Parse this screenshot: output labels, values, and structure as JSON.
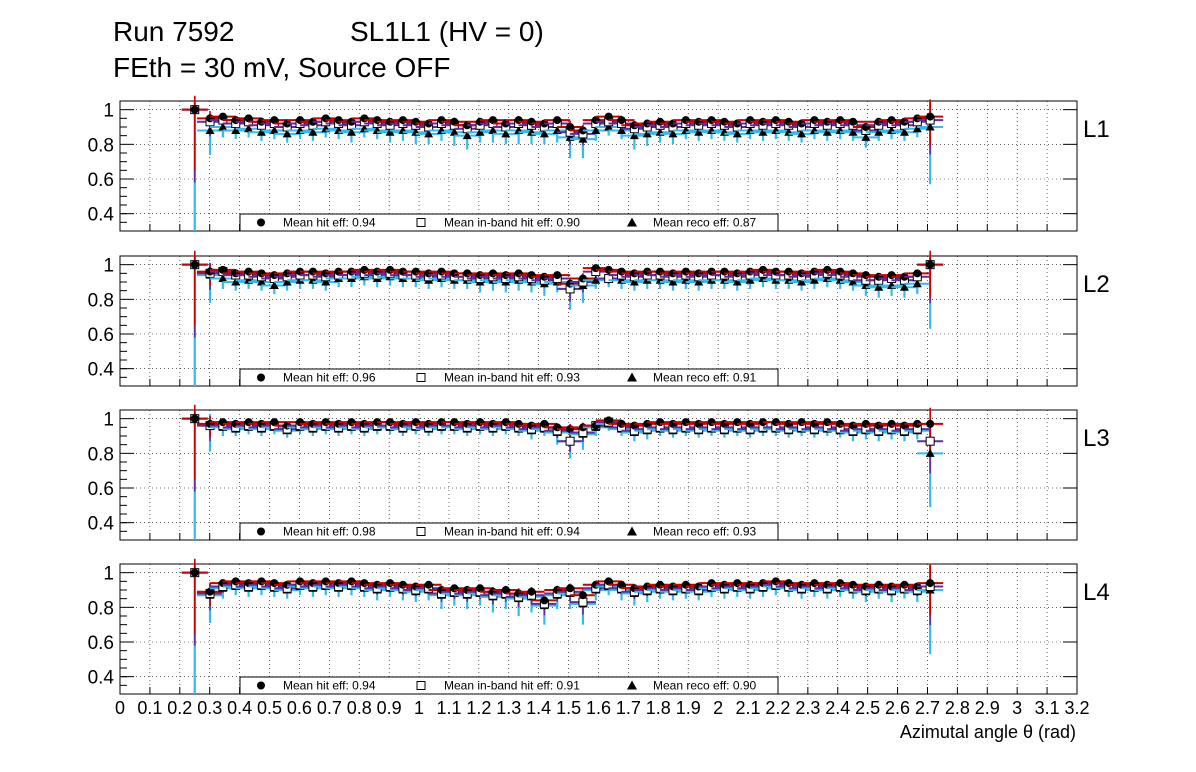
{
  "header": {
    "run": "Run 7592",
    "sl": "SL1L1 (HV = 0)",
    "settings": "FEth = 30 mV, Source OFF"
  },
  "chart_data": {
    "type": "scatter",
    "xlabel": "Azimutal angle θ (rad)",
    "xlim": [
      0,
      3.2
    ],
    "x_ticks": [
      "0",
      "0.1",
      "0.2",
      "0.3",
      "0.4",
      "0.5",
      "0.6",
      "0.7",
      "0.8",
      "0.9",
      "1",
      "1.1",
      "1.2",
      "1.3",
      "1.4",
      "1.5",
      "1.6",
      "1.7",
      "1.8",
      "1.9",
      "2",
      "2.1",
      "2.2",
      "2.3",
      "2.4",
      "2.5",
      "2.6",
      "2.7",
      "2.8",
      "2.9",
      "3",
      "3.1",
      "3.2"
    ],
    "ylim": [
      0.3,
      1.05
    ],
    "y_ticks": [
      "0.4",
      "0.6",
      "0.8",
      "1"
    ],
    "grid": true,
    "colors": {
      "hit": "#000000",
      "inband": "#000000",
      "reco": "#000000",
      "err_hit": "#cc0000",
      "err_inband": "#5b2ea6",
      "err_reco": "#33bbee"
    },
    "x": [
      0.25,
      0.301,
      0.344,
      0.387,
      0.43,
      0.473,
      0.516,
      0.559,
      0.602,
      0.645,
      0.688,
      0.731,
      0.774,
      0.817,
      0.86,
      0.903,
      0.946,
      0.989,
      1.032,
      1.075,
      1.118,
      1.161,
      1.204,
      1.247,
      1.29,
      1.333,
      1.376,
      1.419,
      1.462,
      1.505,
      1.548,
      1.591,
      1.634,
      1.677,
      1.72,
      1.763,
      1.806,
      1.849,
      1.892,
      1.935,
      1.978,
      2.021,
      2.064,
      2.107,
      2.15,
      2.193,
      2.236,
      2.279,
      2.322,
      2.365,
      2.408,
      2.451,
      2.494,
      2.537,
      2.58,
      2.623,
      2.666,
      2.709
    ],
    "panels": [
      {
        "label": "L1",
        "legend": {
          "hit": "Mean hit  eff: 0.94",
          "inband": "Mean in-band hit eff: 0.90",
          "reco": "Mean reco eff: 0.87"
        },
        "hit": [
          1.0,
          0.95,
          0.96,
          0.94,
          0.95,
          0.93,
          0.94,
          0.92,
          0.94,
          0.93,
          0.95,
          0.94,
          0.93,
          0.95,
          0.94,
          0.93,
          0.94,
          0.93,
          0.92,
          0.94,
          0.93,
          0.91,
          0.93,
          0.94,
          0.92,
          0.94,
          0.93,
          0.92,
          0.94,
          0.9,
          0.88,
          0.94,
          0.96,
          0.94,
          0.91,
          0.92,
          0.93,
          0.92,
          0.94,
          0.93,
          0.94,
          0.93,
          0.92,
          0.94,
          0.93,
          0.94,
          0.93,
          0.92,
          0.94,
          0.93,
          0.94,
          0.93,
          0.9,
          0.93,
          0.94,
          0.93,
          0.95,
          0.96
        ],
        "inband": [
          1.0,
          0.93,
          0.94,
          0.92,
          0.93,
          0.91,
          0.92,
          0.9,
          0.92,
          0.91,
          0.93,
          0.92,
          0.91,
          0.93,
          0.92,
          0.91,
          0.92,
          0.91,
          0.9,
          0.92,
          0.91,
          0.89,
          0.91,
          0.92,
          0.9,
          0.92,
          0.91,
          0.9,
          0.92,
          0.87,
          0.86,
          0.92,
          0.93,
          0.92,
          0.89,
          0.9,
          0.91,
          0.9,
          0.92,
          0.91,
          0.92,
          0.91,
          0.9,
          0.92,
          0.91,
          0.92,
          0.91,
          0.9,
          0.92,
          0.91,
          0.92,
          0.91,
          0.88,
          0.91,
          0.92,
          0.91,
          0.93,
          0.94
        ],
        "reco": [
          1.0,
          0.88,
          0.9,
          0.88,
          0.89,
          0.87,
          0.88,
          0.86,
          0.88,
          0.87,
          0.89,
          0.88,
          0.87,
          0.89,
          0.88,
          0.87,
          0.88,
          0.87,
          0.86,
          0.88,
          0.87,
          0.85,
          0.87,
          0.88,
          0.86,
          0.88,
          0.87,
          0.86,
          0.88,
          0.84,
          0.83,
          0.88,
          0.9,
          0.88,
          0.85,
          0.86,
          0.87,
          0.86,
          0.88,
          0.87,
          0.88,
          0.87,
          0.86,
          0.88,
          0.87,
          0.88,
          0.87,
          0.86,
          0.88,
          0.87,
          0.88,
          0.87,
          0.84,
          0.87,
          0.88,
          0.87,
          0.89,
          0.9
        ],
        "reco_err": [
          0.7,
          0.14,
          0.06,
          0.05,
          0.05,
          0.05,
          0.05,
          0.05,
          0.05,
          0.05,
          0.05,
          0.05,
          0.06,
          0.05,
          0.05,
          0.06,
          0.06,
          0.07,
          0.06,
          0.06,
          0.08,
          0.08,
          0.06,
          0.07,
          0.06,
          0.08,
          0.07,
          0.06,
          0.07,
          0.12,
          0.11,
          0.06,
          0.05,
          0.05,
          0.08,
          0.07,
          0.06,
          0.06,
          0.05,
          0.05,
          0.05,
          0.05,
          0.05,
          0.05,
          0.05,
          0.05,
          0.05,
          0.05,
          0.05,
          0.05,
          0.05,
          0.05,
          0.06,
          0.05,
          0.05,
          0.05,
          0.05,
          0.33
        ]
      },
      {
        "label": "L2",
        "legend": {
          "hit": "Mean hit  eff: 0.96",
          "inband": "Mean in-band hit eff: 0.93",
          "reco": "Mean reco eff: 0.91"
        },
        "hit": [
          1.0,
          0.96,
          0.97,
          0.95,
          0.96,
          0.95,
          0.94,
          0.95,
          0.96,
          0.96,
          0.95,
          0.96,
          0.96,
          0.97,
          0.96,
          0.97,
          0.96,
          0.96,
          0.95,
          0.96,
          0.95,
          0.95,
          0.94,
          0.95,
          0.94,
          0.95,
          0.94,
          0.93,
          0.94,
          0.89,
          0.92,
          0.98,
          0.97,
          0.96,
          0.95,
          0.96,
          0.96,
          0.95,
          0.96,
          0.95,
          0.96,
          0.96,
          0.95,
          0.96,
          0.97,
          0.96,
          0.96,
          0.95,
          0.96,
          0.97,
          0.96,
          0.95,
          0.94,
          0.93,
          0.94,
          0.93,
          0.95,
          1.0
        ],
        "inband": [
          1.0,
          0.95,
          0.96,
          0.94,
          0.94,
          0.93,
          0.92,
          0.93,
          0.94,
          0.94,
          0.93,
          0.94,
          0.94,
          0.95,
          0.94,
          0.95,
          0.94,
          0.94,
          0.93,
          0.94,
          0.93,
          0.93,
          0.92,
          0.93,
          0.92,
          0.93,
          0.92,
          0.91,
          0.92,
          0.86,
          0.9,
          0.96,
          0.92,
          0.94,
          0.93,
          0.94,
          0.94,
          0.93,
          0.94,
          0.93,
          0.94,
          0.94,
          0.93,
          0.94,
          0.95,
          0.94,
          0.94,
          0.93,
          0.94,
          0.95,
          0.94,
          0.93,
          0.91,
          0.91,
          0.92,
          0.91,
          0.93,
          1.0
        ],
        "reco": [
          1.0,
          0.94,
          0.92,
          0.9,
          0.91,
          0.9,
          0.88,
          0.9,
          0.91,
          0.91,
          0.9,
          0.92,
          0.92,
          0.93,
          0.92,
          0.93,
          0.92,
          0.92,
          0.91,
          0.92,
          0.91,
          0.91,
          0.9,
          0.91,
          0.9,
          0.91,
          0.9,
          0.89,
          0.9,
          0.86,
          0.88,
          0.91,
          0.92,
          0.91,
          0.9,
          0.91,
          0.91,
          0.9,
          0.91,
          0.9,
          0.91,
          0.91,
          0.9,
          0.91,
          0.92,
          0.91,
          0.91,
          0.9,
          0.91,
          0.92,
          0.91,
          0.9,
          0.88,
          0.87,
          0.88,
          0.87,
          0.89,
          1.0
        ],
        "reco_err": [
          0.7,
          0.16,
          0.06,
          0.05,
          0.05,
          0.05,
          0.05,
          0.05,
          0.05,
          0.05,
          0.05,
          0.05,
          0.05,
          0.05,
          0.05,
          0.05,
          0.05,
          0.05,
          0.05,
          0.05,
          0.05,
          0.05,
          0.06,
          0.06,
          0.06,
          0.06,
          0.06,
          0.07,
          0.06,
          0.12,
          0.1,
          0.05,
          0.05,
          0.05,
          0.05,
          0.05,
          0.05,
          0.05,
          0.05,
          0.05,
          0.05,
          0.05,
          0.05,
          0.05,
          0.05,
          0.05,
          0.05,
          0.05,
          0.05,
          0.05,
          0.05,
          0.05,
          0.06,
          0.06,
          0.06,
          0.06,
          0.06,
          0.37
        ]
      },
      {
        "label": "L3",
        "legend": {
          "hit": "Mean hit  eff: 0.98",
          "inband": "Mean in-band hit eff: 0.94",
          "reco": "Mean reco eff: 0.93"
        },
        "hit": [
          1.0,
          0.97,
          0.98,
          0.97,
          0.98,
          0.97,
          0.98,
          0.96,
          0.98,
          0.97,
          0.98,
          0.97,
          0.98,
          0.97,
          0.98,
          0.98,
          0.97,
          0.98,
          0.97,
          0.98,
          0.98,
          0.97,
          0.98,
          0.97,
          0.98,
          0.97,
          0.96,
          0.97,
          0.95,
          0.94,
          0.95,
          0.96,
          0.99,
          0.97,
          0.96,
          0.97,
          0.98,
          0.97,
          0.98,
          0.97,
          0.98,
          0.97,
          0.98,
          0.97,
          0.98,
          0.98,
          0.97,
          0.98,
          0.97,
          0.98,
          0.97,
          0.96,
          0.97,
          0.96,
          0.97,
          0.96,
          0.97,
          0.97
        ],
        "inband": [
          1.0,
          0.96,
          0.96,
          0.95,
          0.96,
          0.95,
          0.96,
          0.94,
          0.96,
          0.95,
          0.96,
          0.95,
          0.96,
          0.95,
          0.96,
          0.96,
          0.95,
          0.96,
          0.95,
          0.96,
          0.96,
          0.95,
          0.96,
          0.95,
          0.96,
          0.95,
          0.94,
          0.95,
          0.93,
          0.87,
          0.92,
          0.96,
          0.98,
          0.95,
          0.93,
          0.94,
          0.95,
          0.94,
          0.95,
          0.94,
          0.95,
          0.94,
          0.95,
          0.94,
          0.95,
          0.95,
          0.94,
          0.95,
          0.94,
          0.95,
          0.94,
          0.93,
          0.94,
          0.93,
          0.94,
          0.93,
          0.94,
          0.87
        ],
        "reco": [
          1.0,
          0.96,
          0.95,
          0.94,
          0.95,
          0.94,
          0.95,
          0.93,
          0.95,
          0.94,
          0.95,
          0.94,
          0.95,
          0.94,
          0.95,
          0.95,
          0.94,
          0.95,
          0.94,
          0.95,
          0.95,
          0.94,
          0.95,
          0.94,
          0.95,
          0.94,
          0.93,
          0.94,
          0.92,
          0.87,
          0.91,
          0.95,
          0.97,
          0.94,
          0.92,
          0.93,
          0.94,
          0.93,
          0.94,
          0.93,
          0.94,
          0.93,
          0.94,
          0.93,
          0.94,
          0.94,
          0.93,
          0.94,
          0.93,
          0.94,
          0.93,
          0.92,
          0.93,
          0.92,
          0.93,
          0.92,
          0.93,
          0.8
        ],
        "reco_err": [
          0.7,
          0.15,
          0.05,
          0.04,
          0.04,
          0.04,
          0.04,
          0.04,
          0.04,
          0.04,
          0.04,
          0.04,
          0.04,
          0.04,
          0.04,
          0.04,
          0.04,
          0.04,
          0.04,
          0.04,
          0.04,
          0.04,
          0.04,
          0.04,
          0.04,
          0.04,
          0.05,
          0.04,
          0.07,
          0.1,
          0.09,
          0.05,
          0.04,
          0.04,
          0.05,
          0.05,
          0.04,
          0.04,
          0.04,
          0.04,
          0.04,
          0.04,
          0.04,
          0.04,
          0.04,
          0.04,
          0.04,
          0.04,
          0.04,
          0.04,
          0.04,
          0.05,
          0.05,
          0.05,
          0.05,
          0.05,
          0.05,
          0.31
        ]
      },
      {
        "label": "L4",
        "legend": {
          "hit": "Mean hit  eff: 0.94",
          "inband": "Mean in-band hit eff: 0.91",
          "reco": "Mean reco eff: 0.90"
        },
        "hit": [
          1.0,
          0.89,
          0.94,
          0.95,
          0.94,
          0.95,
          0.94,
          0.93,
          0.95,
          0.94,
          0.95,
          0.94,
          0.95,
          0.94,
          0.93,
          0.94,
          0.93,
          0.92,
          0.93,
          0.9,
          0.91,
          0.9,
          0.91,
          0.89,
          0.9,
          0.88,
          0.89,
          0.84,
          0.9,
          0.91,
          0.87,
          0.93,
          0.95,
          0.93,
          0.91,
          0.92,
          0.93,
          0.92,
          0.93,
          0.92,
          0.94,
          0.93,
          0.94,
          0.93,
          0.94,
          0.95,
          0.94,
          0.93,
          0.94,
          0.93,
          0.94,
          0.93,
          0.92,
          0.93,
          0.92,
          0.93,
          0.92,
          0.94
        ],
        "inband": [
          1.0,
          0.88,
          0.92,
          0.93,
          0.92,
          0.93,
          0.92,
          0.91,
          0.93,
          0.92,
          0.93,
          0.92,
          0.93,
          0.92,
          0.91,
          0.92,
          0.91,
          0.9,
          0.91,
          0.88,
          0.89,
          0.88,
          0.89,
          0.87,
          0.88,
          0.86,
          0.87,
          0.82,
          0.88,
          0.89,
          0.83,
          0.91,
          0.93,
          0.91,
          0.89,
          0.9,
          0.91,
          0.9,
          0.91,
          0.9,
          0.92,
          0.91,
          0.92,
          0.91,
          0.92,
          0.93,
          0.92,
          0.91,
          0.92,
          0.91,
          0.92,
          0.91,
          0.9,
          0.91,
          0.9,
          0.91,
          0.9,
          0.92
        ],
        "reco": [
          1.0,
          0.87,
          0.91,
          0.92,
          0.91,
          0.92,
          0.91,
          0.9,
          0.92,
          0.91,
          0.92,
          0.91,
          0.92,
          0.91,
          0.9,
          0.91,
          0.9,
          0.89,
          0.9,
          0.87,
          0.88,
          0.87,
          0.88,
          0.86,
          0.87,
          0.85,
          0.86,
          0.81,
          0.87,
          0.88,
          0.82,
          0.9,
          0.92,
          0.9,
          0.88,
          0.89,
          0.9,
          0.89,
          0.9,
          0.89,
          0.91,
          0.9,
          0.91,
          0.9,
          0.91,
          0.92,
          0.91,
          0.9,
          0.91,
          0.9,
          0.91,
          0.9,
          0.89,
          0.9,
          0.89,
          0.9,
          0.89,
          0.9
        ],
        "reco_err": [
          0.7,
          0.16,
          0.06,
          0.05,
          0.05,
          0.05,
          0.05,
          0.05,
          0.05,
          0.05,
          0.05,
          0.05,
          0.05,
          0.05,
          0.06,
          0.05,
          0.06,
          0.06,
          0.06,
          0.08,
          0.07,
          0.08,
          0.07,
          0.09,
          0.08,
          0.1,
          0.09,
          0.11,
          0.08,
          0.09,
          0.12,
          0.06,
          0.05,
          0.06,
          0.07,
          0.06,
          0.05,
          0.05,
          0.05,
          0.05,
          0.05,
          0.05,
          0.05,
          0.05,
          0.05,
          0.05,
          0.05,
          0.05,
          0.05,
          0.05,
          0.05,
          0.05,
          0.06,
          0.05,
          0.06,
          0.05,
          0.06,
          0.37
        ]
      }
    ]
  }
}
